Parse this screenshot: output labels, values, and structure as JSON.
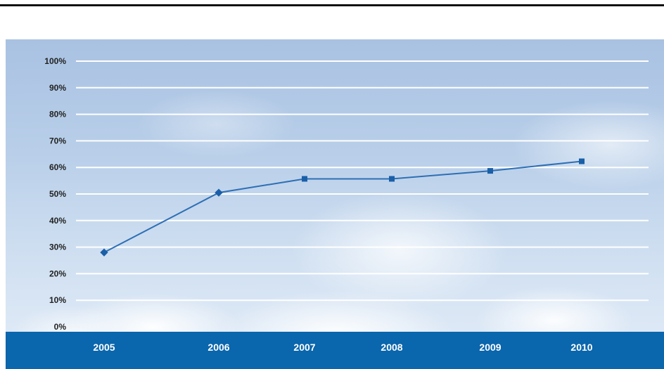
{
  "chart_data": {
    "type": "line",
    "title": "",
    "xlabel": "",
    "ylabel": "",
    "categories": [
      "2005",
      "2006",
      "2007",
      "2008",
      "2009",
      "2010"
    ],
    "y_tick_labels": [
      "0%",
      "10%",
      "20%",
      "30%",
      "40%",
      "50%",
      "60%",
      "70%",
      "80%",
      "90%",
      "100%"
    ],
    "ylim": [
      0,
      100
    ],
    "grid": true,
    "series": [
      {
        "values": [
          28,
          50.5,
          55.7,
          55.7,
          58.7,
          62.3
        ]
      }
    ],
    "colors": {
      "line": "#2d6fb4",
      "marker": "#1a5fa8",
      "grid": "#ffffff",
      "axis_band": "#0a66ad"
    }
  }
}
